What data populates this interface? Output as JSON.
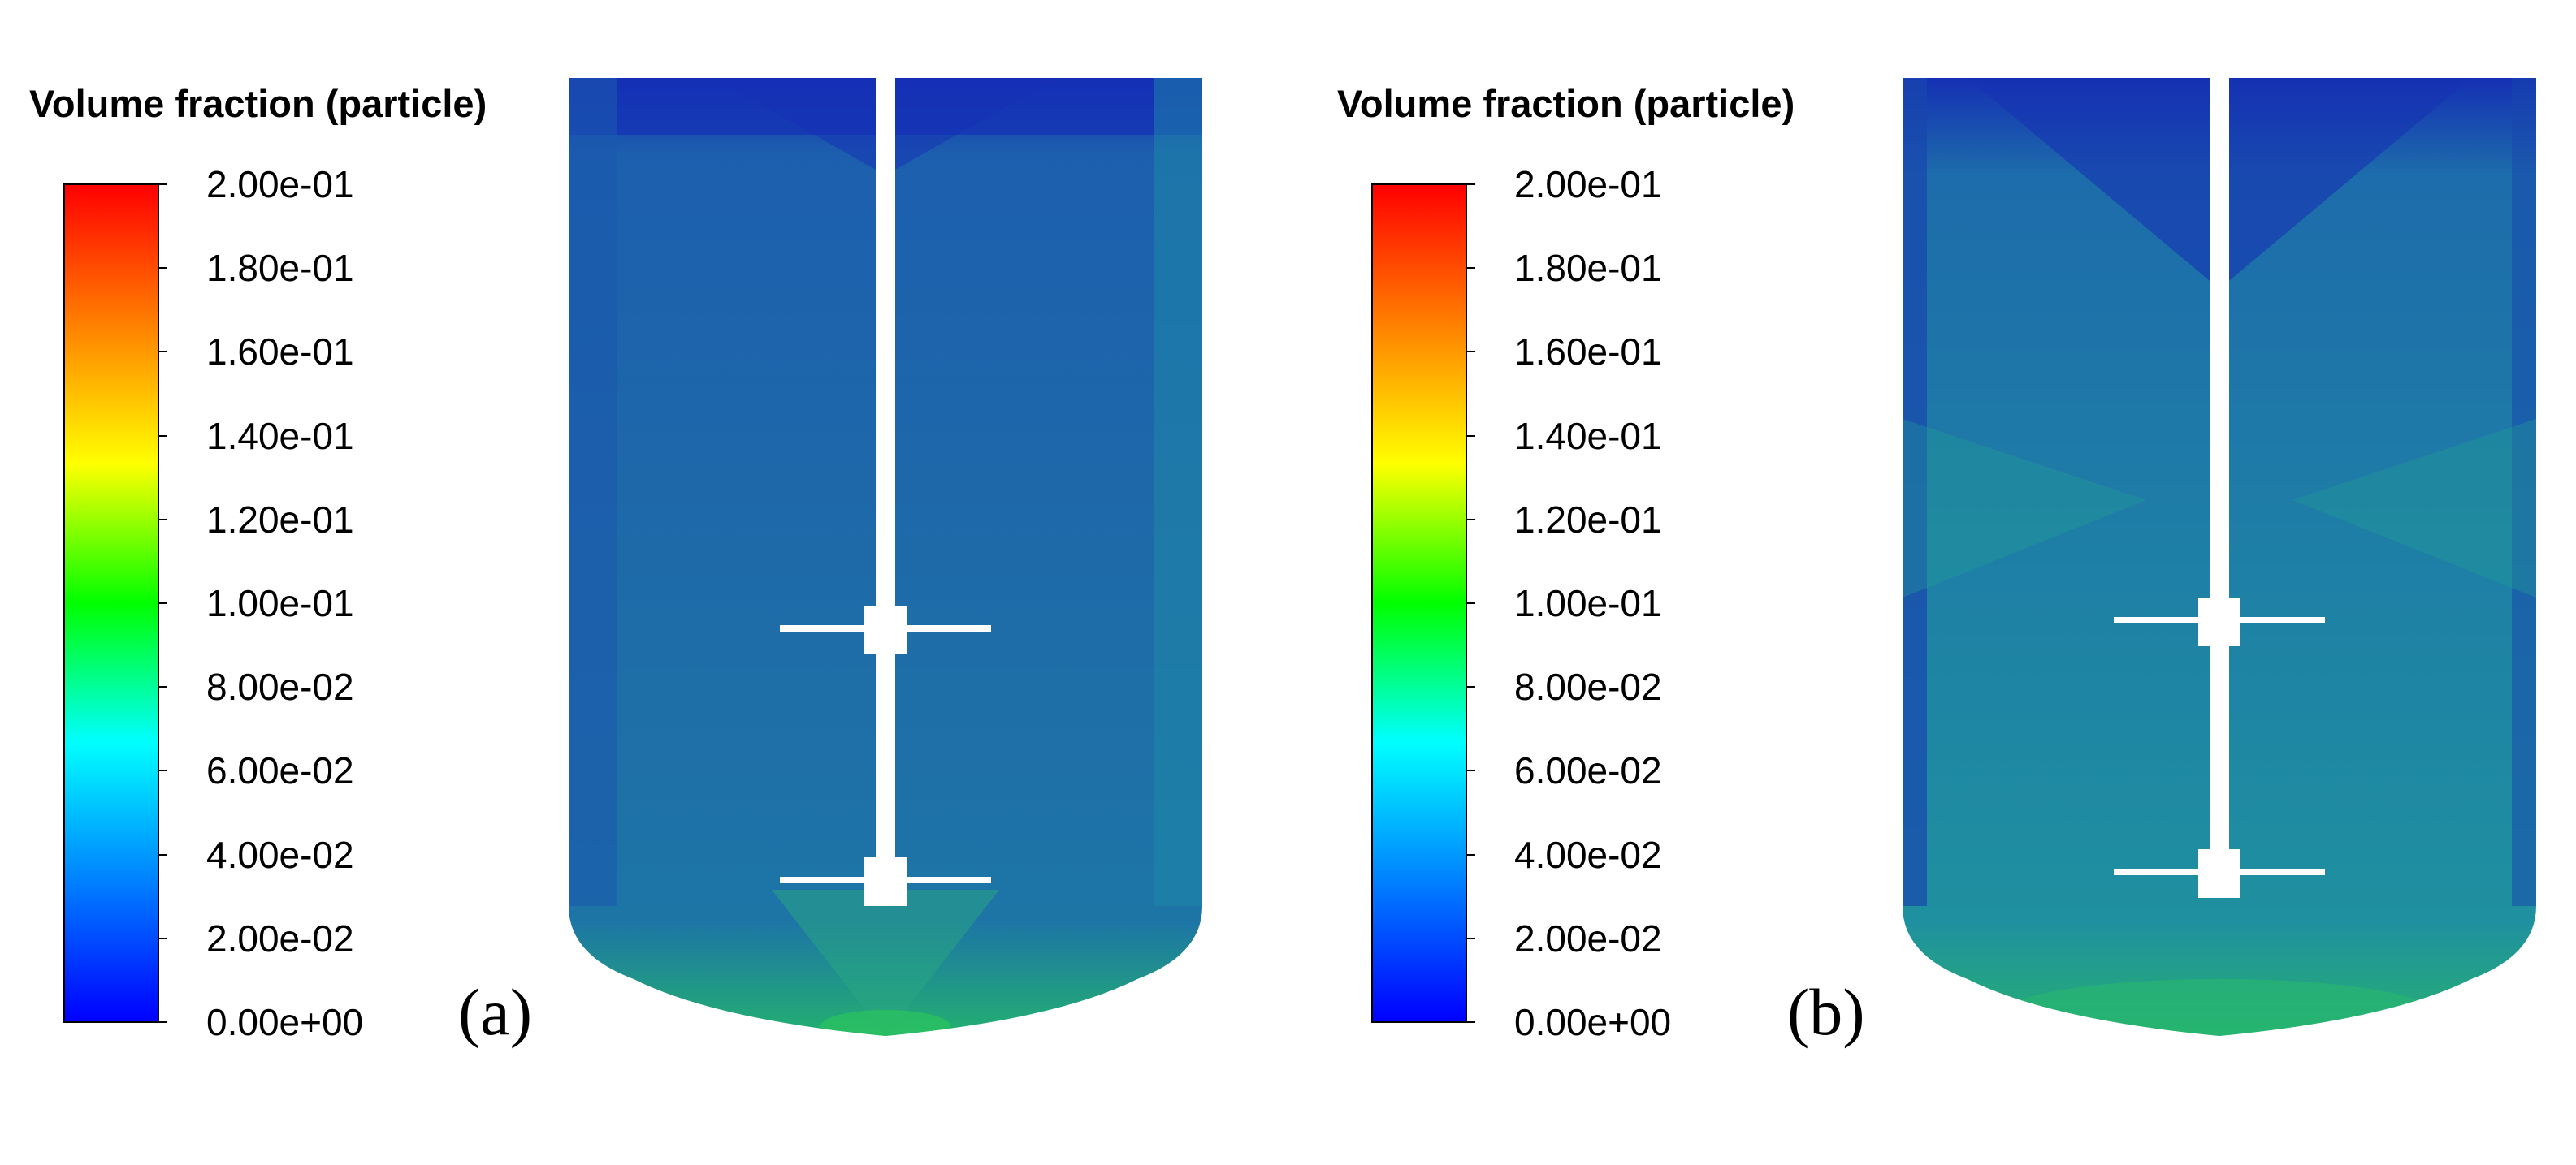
{
  "panels": [
    {
      "label": "(a)",
      "colorbar": {
        "title": "Volume fraction (particle)",
        "ticks": [
          "2.00e-01",
          "1.80e-01",
          "1.60e-01",
          "1.40e-01",
          "1.20e-01",
          "1.00e-01",
          "8.00e-02",
          "6.00e-02",
          "4.00e-02",
          "2.00e-02",
          "0.00e+00"
        ],
        "min": 0.0,
        "max": 0.2
      }
    },
    {
      "label": "(b)",
      "colorbar": {
        "title": "Volume fraction (particle)",
        "ticks": [
          "2.00e-01",
          "1.80e-01",
          "1.60e-01",
          "1.40e-01",
          "1.20e-01",
          "1.00e-01",
          "8.00e-02",
          "6.00e-02",
          "4.00e-02",
          "2.00e-02",
          "0.00e+00"
        ],
        "min": 0.0,
        "max": 0.2
      }
    }
  ],
  "colors": {
    "colormap": [
      "#0000ff",
      "#0080ff",
      "#00ffff",
      "#00ff00",
      "#ffff00",
      "#ff8000",
      "#ff0000"
    ],
    "vessel_top": "#1a2fb0",
    "vessel_body": "#1f6aa8",
    "vessel_bottom": "#22b06a",
    "shaft": "#ffffff"
  }
}
